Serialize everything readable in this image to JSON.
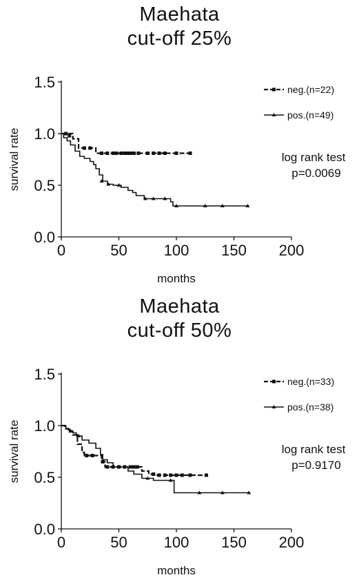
{
  "chart_data": [
    {
      "type": "line",
      "title": [
        "Maehata",
        "cut-off 25%"
      ],
      "xlabel": "months",
      "ylabel": "survival rate",
      "xlim": [
        0,
        200
      ],
      "ylim": [
        0.0,
        1.5
      ],
      "xticks": [
        "0",
        "50",
        "100",
        "150",
        "200"
      ],
      "yticks": [
        "0.0",
        "0.5",
        "1.0",
        "1.5"
      ],
      "legend_position": "right",
      "annotation": [
        "log rank test",
        "p=0.0069"
      ],
      "series": [
        {
          "name": "neg.(n=22)",
          "style": "dashed",
          "steps": [
            [
              0,
              1.0
            ],
            [
              10,
              0.95
            ],
            [
              15,
              0.86
            ],
            [
              30,
              0.81
            ],
            [
              112,
              0.81
            ]
          ],
          "censored": [
            [
              4,
              1.0
            ],
            [
              7,
              0.98
            ],
            [
              20,
              0.86
            ],
            [
              25,
              0.86
            ],
            [
              35,
              0.81
            ],
            [
              40,
              0.81
            ],
            [
              45,
              0.81
            ],
            [
              48,
              0.81
            ],
            [
              52,
              0.81
            ],
            [
              55,
              0.81
            ],
            [
              58,
              0.81
            ],
            [
              60,
              0.81
            ],
            [
              63,
              0.81
            ],
            [
              67,
              0.81
            ],
            [
              75,
              0.81
            ],
            [
              80,
              0.81
            ],
            [
              85,
              0.81
            ],
            [
              90,
              0.81
            ],
            [
              100,
              0.81
            ],
            [
              112,
              0.81
            ]
          ]
        },
        {
          "name": "pos.(n=49)",
          "style": "solid",
          "steps": [
            [
              0,
              1.0
            ],
            [
              2,
              0.96
            ],
            [
              5,
              0.93
            ],
            [
              8,
              0.89
            ],
            [
              12,
              0.83
            ],
            [
              16,
              0.78
            ],
            [
              20,
              0.76
            ],
            [
              25,
              0.73
            ],
            [
              28,
              0.7
            ],
            [
              30,
              0.66
            ],
            [
              33,
              0.6
            ],
            [
              36,
              0.54
            ],
            [
              40,
              0.51
            ],
            [
              45,
              0.5
            ],
            [
              52,
              0.48
            ],
            [
              58,
              0.45
            ],
            [
              62,
              0.43
            ],
            [
              65,
              0.4
            ],
            [
              72,
              0.37
            ],
            [
              95,
              0.34
            ],
            [
              97,
              0.3
            ],
            [
              162,
              0.3
            ]
          ],
          "censored": [
            [
              35,
              0.54
            ],
            [
              41,
              0.51
            ],
            [
              50,
              0.5
            ],
            [
              73,
              0.37
            ],
            [
              80,
              0.37
            ],
            [
              90,
              0.37
            ],
            [
              100,
              0.3
            ],
            [
              125,
              0.3
            ],
            [
              140,
              0.3
            ],
            [
              162,
              0.3
            ]
          ]
        }
      ]
    },
    {
      "type": "line",
      "title": [
        "Maehata",
        "cut-off 50%"
      ],
      "xlabel": "months",
      "ylabel": "survival rate",
      "xlim": [
        0,
        200
      ],
      "ylim": [
        0.0,
        1.5
      ],
      "xticks": [
        "0",
        "50",
        "100",
        "150",
        "200"
      ],
      "yticks": [
        "0.0",
        "0.5",
        "1.0",
        "1.5"
      ],
      "legend_position": "right",
      "annotation": [
        "log rank test",
        "p=0.9170"
      ],
      "series": [
        {
          "name": "neg.(n=33)",
          "style": "dashed",
          "steps": [
            [
              0,
              1.0
            ],
            [
              3,
              0.97
            ],
            [
              6,
              0.94
            ],
            [
              10,
              0.91
            ],
            [
              14,
              0.82
            ],
            [
              18,
              0.74
            ],
            [
              20,
              0.71
            ],
            [
              35,
              0.65
            ],
            [
              38,
              0.6
            ],
            [
              70,
              0.56
            ],
            [
              76,
              0.53
            ],
            [
              82,
              0.52
            ],
            [
              126,
              0.52
            ]
          ],
          "censored": [
            [
              22,
              0.71
            ],
            [
              27,
              0.71
            ],
            [
              36,
              0.65
            ],
            [
              40,
              0.6
            ],
            [
              45,
              0.6
            ],
            [
              50,
              0.6
            ],
            [
              55,
              0.6
            ],
            [
              60,
              0.6
            ],
            [
              63,
              0.6
            ],
            [
              66,
              0.6
            ],
            [
              80,
              0.53
            ],
            [
              85,
              0.52
            ],
            [
              90,
              0.52
            ],
            [
              95,
              0.52
            ],
            [
              100,
              0.52
            ],
            [
              105,
              0.52
            ],
            [
              112,
              0.52
            ],
            [
              126,
              0.52
            ]
          ]
        },
        {
          "name": "pos.(n=38)",
          "style": "solid",
          "steps": [
            [
              0,
              1.0
            ],
            [
              4,
              0.97
            ],
            [
              7,
              0.95
            ],
            [
              10,
              0.93
            ],
            [
              13,
              0.9
            ],
            [
              18,
              0.86
            ],
            [
              24,
              0.83
            ],
            [
              30,
              0.78
            ],
            [
              34,
              0.72
            ],
            [
              36,
              0.67
            ],
            [
              40,
              0.64
            ],
            [
              45,
              0.6
            ],
            [
              58,
              0.56
            ],
            [
              63,
              0.53
            ],
            [
              70,
              0.49
            ],
            [
              80,
              0.47
            ],
            [
              95,
              0.47
            ],
            [
              98,
              0.35
            ],
            [
              163,
              0.35
            ]
          ],
          "censored": [
            [
              8,
              0.95
            ],
            [
              15,
              0.9
            ],
            [
              50,
              0.6
            ],
            [
              75,
              0.49
            ],
            [
              95,
              0.47
            ],
            [
              120,
              0.35
            ],
            [
              140,
              0.35
            ],
            [
              163,
              0.35
            ]
          ]
        }
      ]
    }
  ]
}
